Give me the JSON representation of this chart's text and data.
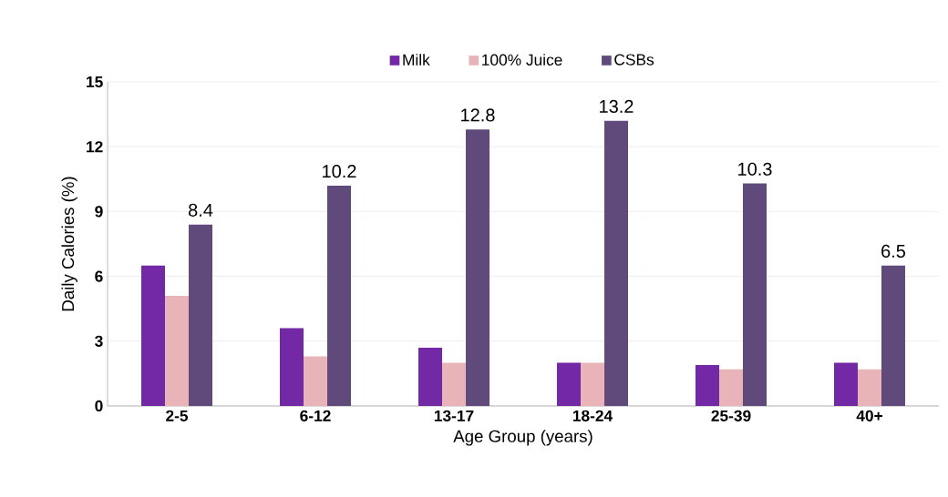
{
  "chart_data": {
    "type": "bar",
    "xlabel": "Age Group (years)",
    "ylabel": "Daily Calories (%)",
    "categories": [
      "2-5",
      "6-12",
      "13-17",
      "18-24",
      "25-39",
      "40+"
    ],
    "series": [
      {
        "name": "Milk",
        "color": "#7328a6",
        "values": [
          6.5,
          3.6,
          2.7,
          2.0,
          1.9,
          2.0
        ]
      },
      {
        "name": "100% Juice",
        "color": "#e8b4b8",
        "values": [
          5.1,
          2.3,
          2.0,
          2.0,
          1.7,
          1.7
        ]
      },
      {
        "name": "CSBs",
        "color": "#604a7b",
        "values": [
          8.4,
          10.2,
          12.8,
          13.2,
          10.3,
          6.5
        ],
        "value_labels": [
          "8.4",
          "10.2",
          "12.8",
          "13.2",
          "10.3",
          "6.5"
        ]
      }
    ],
    "ylim": [
      0,
      15
    ],
    "yticks": [
      0,
      3,
      6,
      9,
      12,
      15
    ],
    "grid": "y",
    "legend": "top"
  }
}
